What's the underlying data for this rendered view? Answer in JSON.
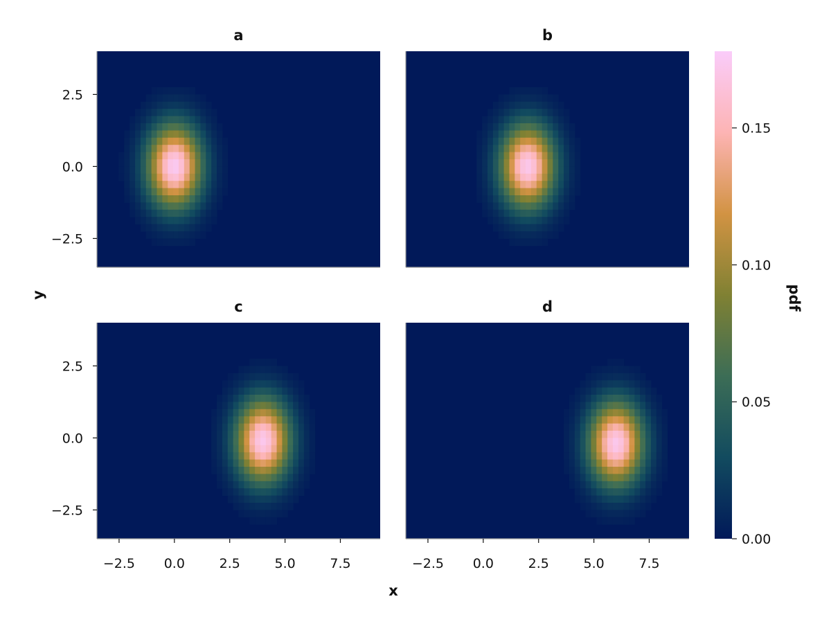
{
  "chart_data": {
    "type": "heatmap",
    "xlabel": "x",
    "ylabel": "y",
    "xlim": [
      -3.5,
      9.3
    ],
    "ylim": [
      -3.5,
      4.0
    ],
    "x_ticks": [
      -2.5,
      0.0,
      2.5,
      5.0,
      7.5
    ],
    "x_tick_labels": [
      "−2.5",
      "0.0",
      "2.5",
      "5.0",
      "7.5"
    ],
    "y_ticks": [
      -2.5,
      0.0,
      2.5
    ],
    "y_tick_labels": [
      "−2.5",
      "0.0",
      "2.5"
    ],
    "panels": [
      {
        "title": "a",
        "center": [
          0.0,
          0.0
        ],
        "peak": 0.175
      },
      {
        "title": "b",
        "center": [
          2.0,
          0.0
        ],
        "peak": 0.172
      },
      {
        "title": "c",
        "center": [
          4.0,
          -0.1
        ],
        "peak": 0.172
      },
      {
        "title": "d",
        "center": [
          6.0,
          -0.2
        ],
        "peak": 0.172
      }
    ],
    "colorbar": {
      "label": "pdf",
      "range": [
        0.0,
        0.178
      ],
      "ticks": [
        0.0,
        0.05,
        0.1,
        0.15
      ],
      "tick_labels": [
        "0.00",
        "0.05",
        "0.10",
        "0.15"
      ],
      "colormap": [
        "#011959",
        "#124B5F",
        "#3C6D56",
        "#808133",
        "#D29343",
        "#FDB4B4",
        "#FACCFA"
      ]
    }
  }
}
